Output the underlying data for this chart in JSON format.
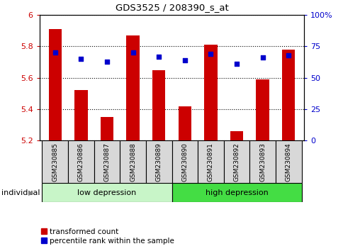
{
  "title": "GDS3525 / 208390_s_at",
  "samples": [
    "GSM230885",
    "GSM230886",
    "GSM230887",
    "GSM230888",
    "GSM230889",
    "GSM230890",
    "GSM230891",
    "GSM230892",
    "GSM230893",
    "GSM230894"
  ],
  "transformed_count": [
    5.91,
    5.52,
    5.35,
    5.87,
    5.65,
    5.42,
    5.81,
    5.26,
    5.59,
    5.78
  ],
  "percentile_rank_pct": [
    70,
    65,
    63,
    70,
    67,
    64,
    69,
    61,
    66,
    68
  ],
  "ylim_left": [
    5.2,
    6.0
  ],
  "ylim_right": [
    0,
    100
  ],
  "yticks_left": [
    5.2,
    5.4,
    5.6,
    5.8,
    6.0
  ],
  "ytick_labels_left": [
    "5.2",
    "5.4",
    "5.6",
    "5.8",
    "6"
  ],
  "yticks_right": [
    0,
    25,
    50,
    75,
    100
  ],
  "ytick_labels_right": [
    "0",
    "25",
    "50",
    "75",
    "100%"
  ],
  "bar_color": "#cc0000",
  "dot_color": "#0000cc",
  "bar_bottom": 5.2,
  "groups": [
    {
      "label": "low depression",
      "start": 0,
      "end": 5,
      "facecolor": "#c8f5c8"
    },
    {
      "label": "high depression",
      "start": 5,
      "end": 10,
      "facecolor": "#44dd44"
    }
  ],
  "legend_items": [
    {
      "color": "#cc0000",
      "label": "transformed count"
    },
    {
      "color": "#0000cc",
      "label": "percentile rank within the sample"
    }
  ],
  "individual_label": "individual",
  "bar_width": 0.5,
  "sample_box_facecolor": "#d8d8d8",
  "grid_color": "black",
  "grid_linestyle": "dotted"
}
